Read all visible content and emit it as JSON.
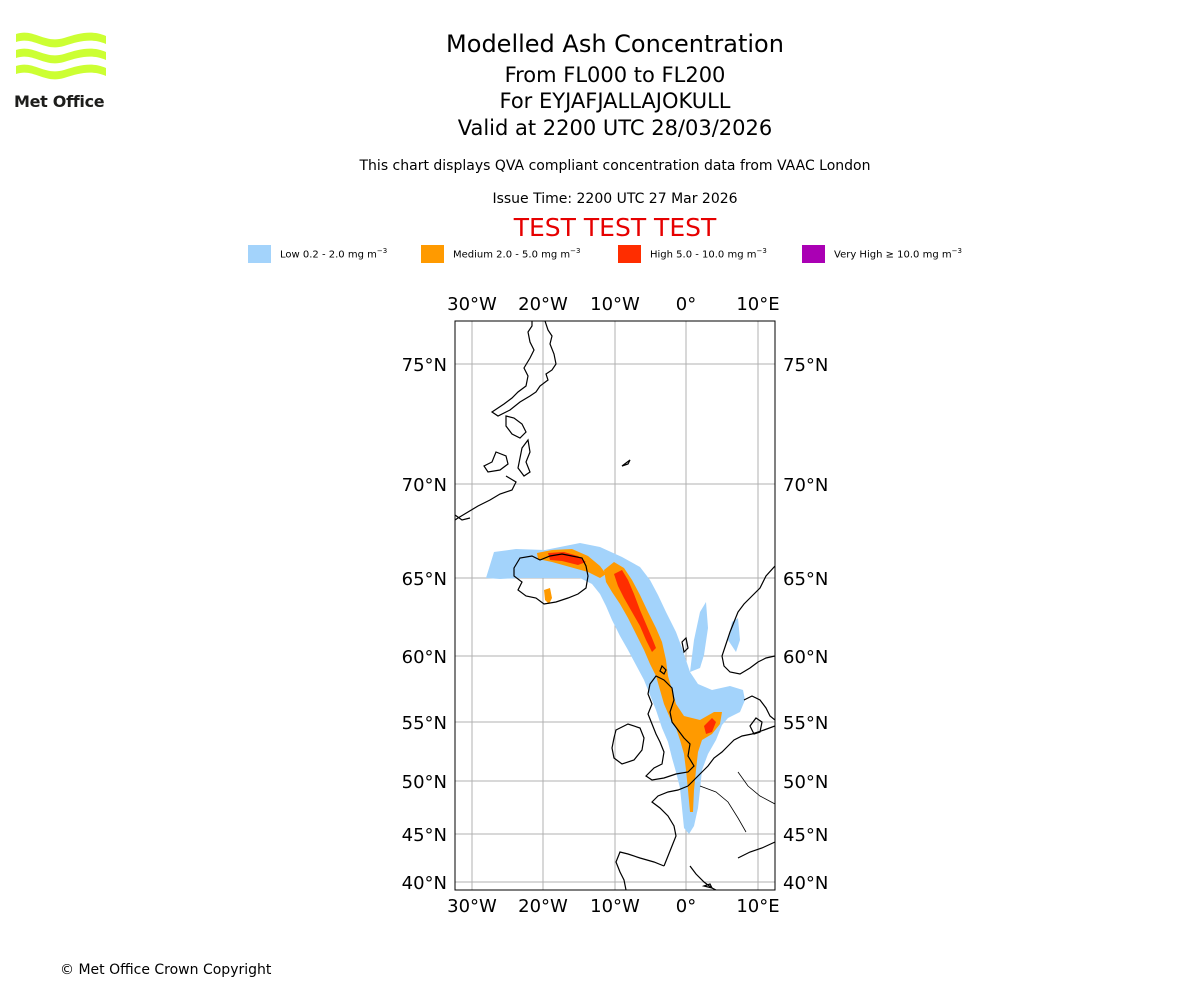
{
  "header": {
    "title": "Modelled Ash Concentration",
    "levels": "From FL000 to FL200",
    "volcano": "For EYJAFJALLAJOKULL",
    "valid": "Valid at 2200 UTC 28/03/2026",
    "description": "This chart displays QVA compliant concentration data from VAAC London",
    "issue_time": "Issue Time: 2200 UTC 27 Mar 2026",
    "test_banner": "TEST TEST TEST"
  },
  "logo": {
    "text": "Met Office",
    "color": "#ccff33"
  },
  "legend": [
    {
      "label": "Low 0.2 - 2.0 mg m",
      "unit_exp": "−3",
      "color": "#a3d3fb"
    },
    {
      "label": "Medium 2.0 - 5.0 mg m",
      "unit_exp": "−3",
      "color": "#ff9a00"
    },
    {
      "label": "High 5.0 - 10.0 mg m",
      "unit_exp": "−3",
      "color": "#ff2d00"
    },
    {
      "label": "Very High ≥ 10.0 mg m",
      "unit_exp": "−3",
      "color": "#aa00b4"
    }
  ],
  "map": {
    "projection": "Mercator",
    "lon_range": [
      -32.3,
      12.3
    ],
    "lat_range": [
      39.5,
      77.0
    ],
    "lon_ticks": [
      "30°W",
      "20°W",
      "10°W",
      "0°",
      "10°E"
    ],
    "lat_ticks": [
      "75°N",
      "70°N",
      "65°N",
      "60°N",
      "55°N",
      "50°N",
      "45°N",
      "40°N"
    ],
    "gridline_color": "#b0b0b0"
  },
  "footer": {
    "copyright": "© Met Office Crown Copyright"
  }
}
